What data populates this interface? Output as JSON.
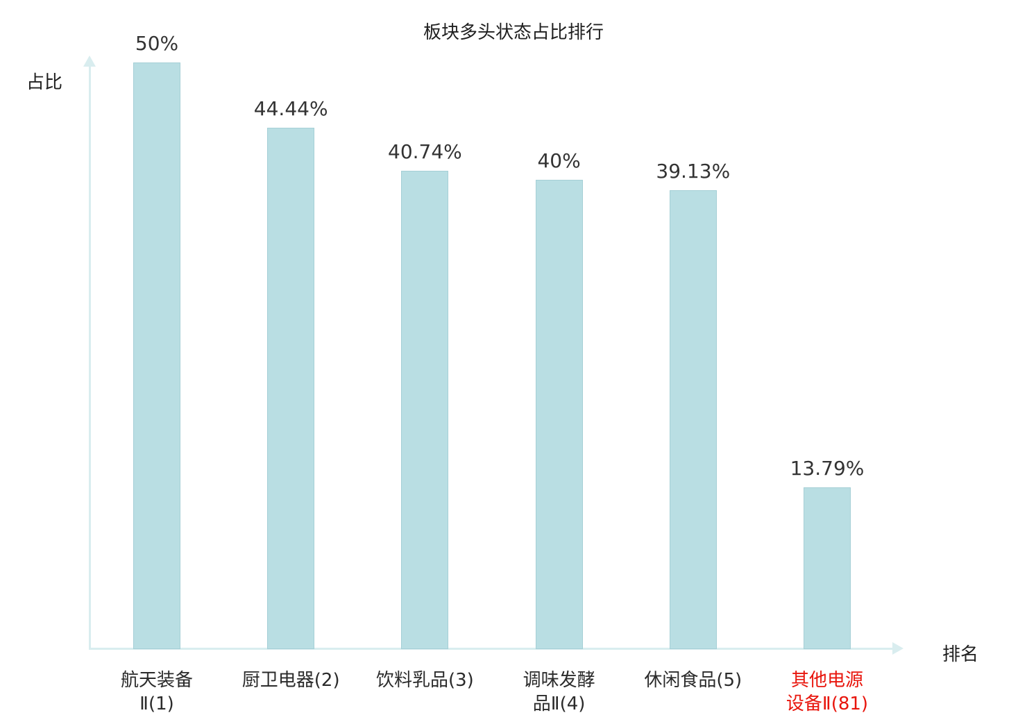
{
  "chart_data": {
    "type": "bar",
    "title": "板块多头状态占比排行",
    "xlabel": "排名",
    "ylabel": "占比",
    "ylim": [
      0,
      50
    ],
    "grid": false,
    "legend": "none",
    "categories": [
      "航天装备\nⅡ(1)",
      "厨卫电器(2)",
      "饮料乳品(3)",
      "调味发酵\n品Ⅱ(4)",
      "休闲食品(5)",
      "其他电源\n设备Ⅱ(81)"
    ],
    "values": [
      50,
      44.44,
      40.74,
      40,
      39.13,
      13.79
    ],
    "value_labels": [
      "50%",
      "44.44%",
      "40.74%",
      "40%",
      "39.13%",
      "13.79%"
    ],
    "category_colors": [
      "#2b2b2b",
      "#2b2b2b",
      "#2b2b2b",
      "#2b2b2b",
      "#2b2b2b",
      "#e8150c"
    ],
    "colors": {
      "bar_fill": "#b9dee3",
      "bar_border": "#a5cfd6",
      "axis": "#d9edef",
      "value_text": "#333333",
      "title_text": "#1f1f1f"
    }
  }
}
